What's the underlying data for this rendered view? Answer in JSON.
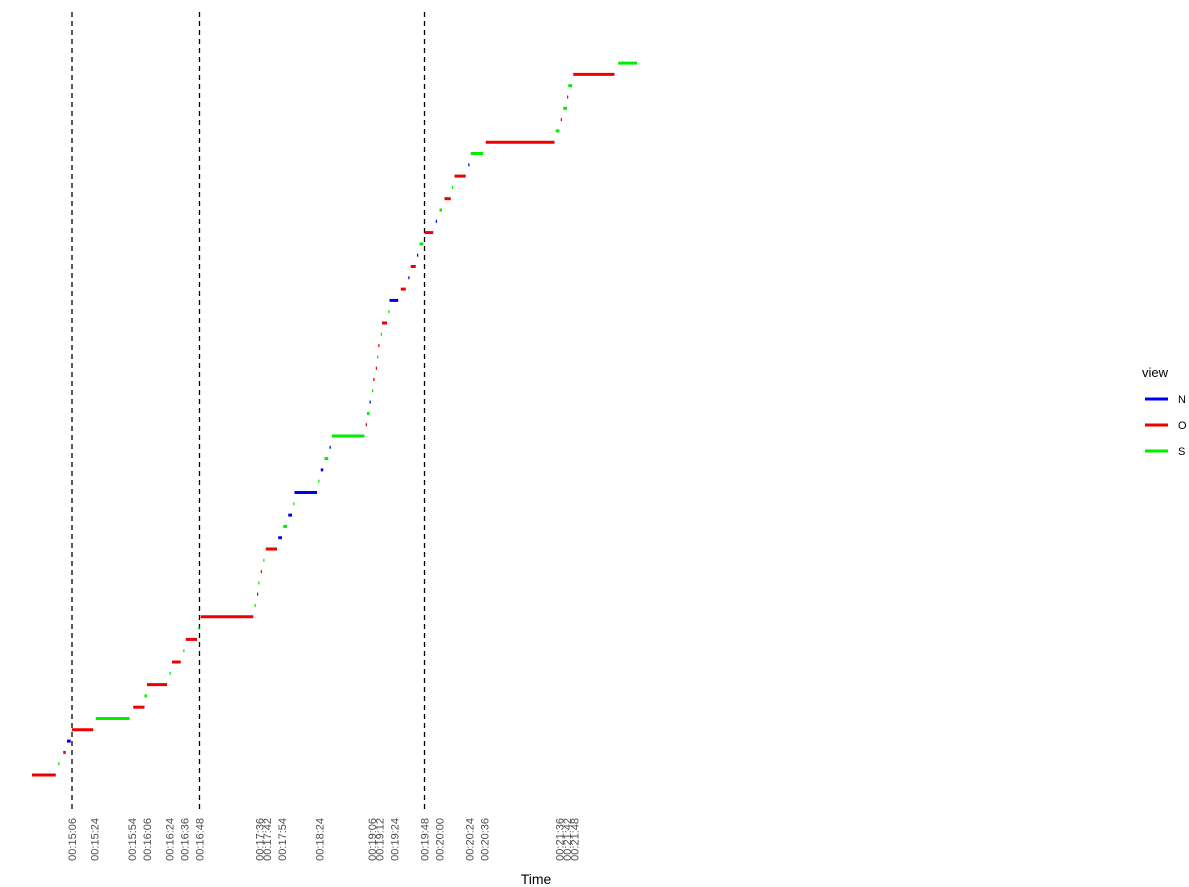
{
  "chart_data": {
    "type": "line",
    "title": "",
    "xlabel": "Time",
    "ylabel": "",
    "grid": false,
    "legend_position": "right",
    "x_ticks": [
      "00:15:06",
      "00:15:24",
      "00:15:54",
      "00:16:06",
      "00:16:24",
      "00:16:36",
      "00:16:48",
      "00:17:36",
      "00:17:42",
      "00:17:54",
      "00:18:24",
      "00:19:06",
      "00:19:12",
      "00:19:24",
      "00:19:48",
      "00:20:00",
      "00:20:24",
      "00:20:36",
      "00:21:36",
      "00:21:42",
      "00:21:48"
    ],
    "vlines": [
      "00:15:06",
      "00:16:48",
      "00:19:48"
    ],
    "legend": {
      "title": "view",
      "entries": [
        {
          "label": "N",
          "color": "#0000ee"
        },
        {
          "label": "O",
          "color": "#ee0000"
        },
        {
          "label": "S",
          "color": "#00ee00"
        }
      ]
    },
    "segments": [
      {
        "view": "O",
        "start": "00:14:34",
        "end": "00:14:53",
        "level": 1
      },
      {
        "view": "S",
        "start": "00:14:55",
        "end": "00:14:56",
        "level": 2
      },
      {
        "view": "O",
        "start": "00:14:59",
        "end": "00:15:01",
        "level": 3
      },
      {
        "view": "N",
        "start": "00:15:02",
        "end": "00:15:05",
        "level": 4
      },
      {
        "view": "O",
        "start": "00:15:06",
        "end": "00:15:23",
        "level": 5
      },
      {
        "view": "S",
        "start": "00:15:25",
        "end": "00:15:52",
        "level": 6
      },
      {
        "view": "O",
        "start": "00:15:55",
        "end": "00:16:04",
        "level": 7
      },
      {
        "view": "S",
        "start": "00:16:04",
        "end": "00:16:06",
        "level": 8
      },
      {
        "view": "O",
        "start": "00:16:06",
        "end": "00:16:22",
        "level": 9
      },
      {
        "view": "S",
        "start": "00:16:24",
        "end": "00:16:25",
        "level": 10
      },
      {
        "view": "O",
        "start": "00:16:26",
        "end": "00:16:33",
        "level": 11
      },
      {
        "view": "S",
        "start": "00:16:35",
        "end": "00:16:36",
        "level": 12
      },
      {
        "view": "O",
        "start": "00:16:37",
        "end": "00:16:46",
        "level": 13
      },
      {
        "view": "S",
        "start": "00:16:47",
        "end": "00:16:48",
        "level": 14
      },
      {
        "view": "O",
        "start": "00:16:49",
        "end": "00:17:31",
        "level": 15
      },
      {
        "view": "S",
        "start": "00:17:32",
        "end": "00:17:33",
        "level": 16
      },
      {
        "view": "O",
        "start": "00:17:34",
        "end": "00:17:35",
        "level": 17
      },
      {
        "view": "S",
        "start": "00:17:35",
        "end": "00:17:36",
        "level": 18
      },
      {
        "view": "O",
        "start": "00:17:37",
        "end": "00:17:38",
        "level": 19
      },
      {
        "view": "S",
        "start": "00:17:39",
        "end": "00:17:40",
        "level": 20
      },
      {
        "view": "O",
        "start": "00:17:41",
        "end": "00:17:50",
        "level": 21
      },
      {
        "view": "N",
        "start": "00:17:51",
        "end": "00:17:54",
        "level": 22
      },
      {
        "view": "S",
        "start": "00:17:55",
        "end": "00:17:58",
        "level": 23
      },
      {
        "view": "N",
        "start": "00:17:59",
        "end": "00:18:02",
        "level": 24
      },
      {
        "view": "S",
        "start": "00:18:03",
        "end": "00:18:04",
        "level": 25
      },
      {
        "view": "N",
        "start": "00:18:04",
        "end": "00:18:22",
        "level": 26
      },
      {
        "view": "S",
        "start": "00:18:23",
        "end": "00:18:24",
        "level": 27
      },
      {
        "view": "N",
        "start": "00:18:25",
        "end": "00:18:27",
        "level": 28
      },
      {
        "view": "S",
        "start": "00:18:28",
        "end": "00:18:31",
        "level": 29
      },
      {
        "view": "N",
        "start": "00:18:32",
        "end": "00:18:33",
        "level": 30
      },
      {
        "view": "S",
        "start": "00:18:34",
        "end": "00:19:00",
        "level": 31
      },
      {
        "view": "O",
        "start": "00:19:01",
        "end": "00:19:02",
        "level": 32
      },
      {
        "view": "S",
        "start": "00:19:02",
        "end": "00:19:04",
        "level": 33
      },
      {
        "view": "N",
        "start": "00:19:04",
        "end": "00:19:05",
        "level": 34
      },
      {
        "view": "S",
        "start": "00:19:06",
        "end": "00:19:07",
        "level": 35
      },
      {
        "view": "O",
        "start": "00:19:07",
        "end": "00:19:08",
        "level": 36
      },
      {
        "view": "O",
        "start": "00:19:09",
        "end": "00:19:10",
        "level": 37
      },
      {
        "view": "S",
        "start": "00:19:10",
        "end": "00:19:11",
        "level": 38
      },
      {
        "view": "O",
        "start": "00:19:11",
        "end": "00:19:12",
        "level": 39
      },
      {
        "view": "S",
        "start": "00:19:13",
        "end": "00:19:14",
        "level": 40
      },
      {
        "view": "O",
        "start": "00:19:14",
        "end": "00:19:18",
        "level": 41
      },
      {
        "view": "S",
        "start": "00:19:19",
        "end": "00:19:20",
        "level": 42
      },
      {
        "view": "N",
        "start": "00:19:20",
        "end": "00:19:27",
        "level": 43
      },
      {
        "view": "O",
        "start": "00:19:29",
        "end": "00:19:33",
        "level": 44
      },
      {
        "view": "N",
        "start": "00:19:35",
        "end": "00:19:36",
        "level": 45
      },
      {
        "view": "O",
        "start": "00:19:37",
        "end": "00:19:41",
        "level": 46
      },
      {
        "view": "N",
        "start": "00:19:42",
        "end": "00:19:43",
        "level": 47
      },
      {
        "view": "S",
        "start": "00:19:44",
        "end": "00:19:47",
        "level": 48
      },
      {
        "view": "O",
        "start": "00:19:48",
        "end": "00:19:55",
        "level": 49
      },
      {
        "view": "N",
        "start": "00:19:57",
        "end": "00:19:58",
        "level": 50
      },
      {
        "view": "S",
        "start": "00:20:00",
        "end": "00:20:02",
        "level": 51
      },
      {
        "view": "O",
        "start": "00:20:04",
        "end": "00:20:09",
        "level": 52
      },
      {
        "view": "S",
        "start": "00:20:10",
        "end": "00:20:11",
        "level": 53
      },
      {
        "view": "O",
        "start": "00:20:12",
        "end": "00:20:21",
        "level": 54
      },
      {
        "view": "N",
        "start": "00:20:23",
        "end": "00:20:24",
        "level": 55
      },
      {
        "view": "S",
        "start": "00:20:25",
        "end": "00:20:35",
        "level": 56
      },
      {
        "view": "O",
        "start": "00:20:37",
        "end": "00:21:32",
        "level": 57
      },
      {
        "view": "S",
        "start": "00:21:33",
        "end": "00:21:36",
        "level": 58
      },
      {
        "view": "O",
        "start": "00:21:37",
        "end": "00:21:38",
        "level": 59
      },
      {
        "view": "S",
        "start": "00:21:39",
        "end": "00:21:42",
        "level": 60
      },
      {
        "view": "O",
        "start": "00:21:42",
        "end": "00:21:43",
        "level": 61
      },
      {
        "view": "S",
        "start": "00:21:43",
        "end": "00:21:46",
        "level": 62
      },
      {
        "view": "O",
        "start": "00:21:47",
        "end": "00:22:20",
        "level": 63
      },
      {
        "view": "S",
        "start": "00:22:23",
        "end": "00:22:38",
        "level": 64
      }
    ]
  }
}
